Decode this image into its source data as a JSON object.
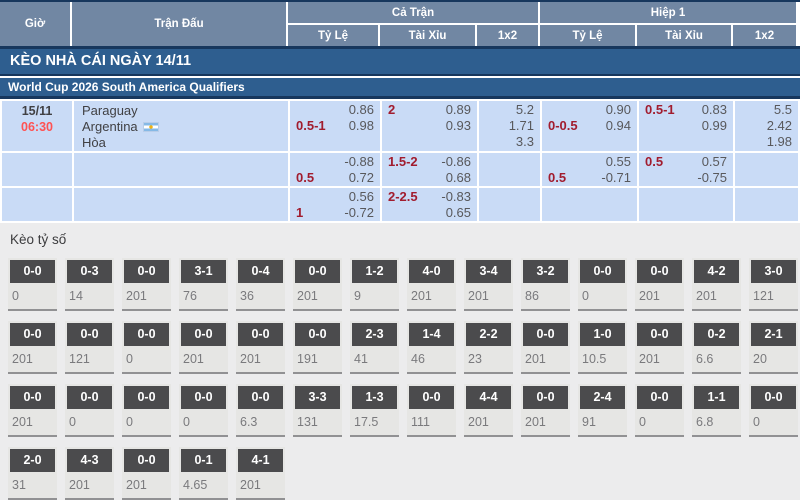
{
  "colors": {
    "header_slate": "#7187a3",
    "navy_line": "#17375d",
    "banner_blue": "#2e5e8f",
    "row_light_blue": "#c9dbf6",
    "accent_red": "#ff5252",
    "handicap_maroon": "#a11c2e",
    "odds_gray": "#58585b",
    "score_box_dark": "#4b4b4d",
    "section_gray": "#ececed"
  },
  "table_header": {
    "col_time": "Giờ",
    "col_match": "Trận Đấu",
    "group_full": "Cả Trận",
    "group_half": "Hiệp 1",
    "sub_odds": "Tỷ Lệ",
    "sub_ou": "Tài Xỉu",
    "sub_1x2": "1x2"
  },
  "banner_title": "KÈO NHÀ CÁI NGÀY 14/11",
  "league_name": "World Cup 2026 South America Qualifiers",
  "odds": {
    "match": {
      "date": "15/11",
      "time": "06:30",
      "home": "Paraguay",
      "away": "Argentina",
      "draw": "Hòa",
      "away_flag": "argentina-flag"
    },
    "rows": [
      {
        "lines": 3,
        "cells": [
          {
            "hc": "0.5-1",
            "hcLine": 2,
            "vals": [
              "0.86",
              "0.98"
            ]
          },
          {
            "hc": "2",
            "hcLine": 1,
            "vals": [
              "0.89",
              "0.93"
            ]
          },
          {
            "x12": [
              "5.2",
              "1.71",
              "3.3"
            ]
          },
          {
            "hc": "0-0.5",
            "hcLine": 2,
            "vals": [
              "0.90",
              "0.94"
            ]
          },
          {
            "hc": "0.5-1",
            "hcLine": 1,
            "vals": [
              "0.83",
              "0.99"
            ]
          },
          {
            "x12": [
              "5.5",
              "2.42",
              "1.98"
            ]
          }
        ]
      },
      {
        "lines": 2,
        "cells": [
          {
            "hc": "0.5",
            "hcLine": 2,
            "vals": [
              "-0.88",
              "0.72"
            ]
          },
          {
            "hc": "1.5-2",
            "hcLine": 1,
            "vals": [
              "-0.86",
              "0.68"
            ]
          },
          {
            "x12": []
          },
          {
            "hc": "0.5",
            "hcLine": 2,
            "vals": [
              "0.55",
              "-0.71"
            ]
          },
          {
            "hc": "0.5",
            "hcLine": 1,
            "vals": [
              "0.57",
              "-0.75"
            ]
          },
          {
            "x12": []
          }
        ]
      },
      {
        "lines": 2,
        "cells": [
          {
            "hc": "1",
            "hcLine": 2,
            "vals": [
              "0.56",
              "-0.72"
            ]
          },
          {
            "hc": "2-2.5",
            "hcLine": 1,
            "vals": [
              "-0.83",
              "0.65"
            ]
          },
          {
            "x12": []
          },
          {},
          {},
          {
            "x12": []
          }
        ]
      }
    ]
  },
  "score_section": {
    "title": "Kèo tỷ số",
    "rows": [
      [
        {
          "score": "0-0",
          "odds": "0"
        },
        {
          "score": "0-3",
          "odds": "14"
        },
        {
          "score": "0-0",
          "odds": "201"
        },
        {
          "score": "3-1",
          "odds": "76"
        },
        {
          "score": "0-4",
          "odds": "36"
        },
        {
          "score": "0-0",
          "odds": "201"
        },
        {
          "score": "1-2",
          "odds": "9"
        },
        {
          "score": "4-0",
          "odds": "201"
        },
        {
          "score": "3-4",
          "odds": "201"
        },
        {
          "score": "3-2",
          "odds": "86"
        },
        {
          "score": "0-0",
          "odds": "0"
        },
        {
          "score": "0-0",
          "odds": "201"
        },
        {
          "score": "4-2",
          "odds": "201"
        },
        {
          "score": "3-0",
          "odds": "121"
        }
      ],
      [
        {
          "score": "0-0",
          "odds": "201"
        },
        {
          "score": "0-0",
          "odds": "121"
        },
        {
          "score": "0-0",
          "odds": "0"
        },
        {
          "score": "0-0",
          "odds": "201"
        },
        {
          "score": "0-0",
          "odds": "201"
        },
        {
          "score": "0-0",
          "odds": "191"
        },
        {
          "score": "2-3",
          "odds": "41"
        },
        {
          "score": "1-4",
          "odds": "46"
        },
        {
          "score": "2-2",
          "odds": "23"
        },
        {
          "score": "0-0",
          "odds": "201"
        },
        {
          "score": "1-0",
          "odds": "10.5"
        },
        {
          "score": "0-0",
          "odds": "201"
        },
        {
          "score": "0-2",
          "odds": "6.6"
        },
        {
          "score": "2-1",
          "odds": "20"
        }
      ],
      [
        {
          "score": "0-0",
          "odds": "201"
        },
        {
          "score": "0-0",
          "odds": "0"
        },
        {
          "score": "0-0",
          "odds": "0"
        },
        {
          "score": "0-0",
          "odds": "0"
        },
        {
          "score": "0-0",
          "odds": "6.3"
        },
        {
          "score": "3-3",
          "odds": "131"
        },
        {
          "score": "1-3",
          "odds": "17.5"
        },
        {
          "score": "0-0",
          "odds": "111"
        },
        {
          "score": "4-4",
          "odds": "201"
        },
        {
          "score": "0-0",
          "odds": "201"
        },
        {
          "score": "2-4",
          "odds": "91"
        },
        {
          "score": "0-0",
          "odds": "0"
        },
        {
          "score": "1-1",
          "odds": "6.8"
        },
        {
          "score": "0-0",
          "odds": "0"
        }
      ],
      [
        {
          "score": "2-0",
          "odds": "31"
        },
        {
          "score": "4-3",
          "odds": "201"
        },
        {
          "score": "0-0",
          "odds": "201"
        },
        {
          "score": "0-1",
          "odds": "4.65"
        },
        {
          "score": "4-1",
          "odds": "201"
        }
      ]
    ]
  }
}
